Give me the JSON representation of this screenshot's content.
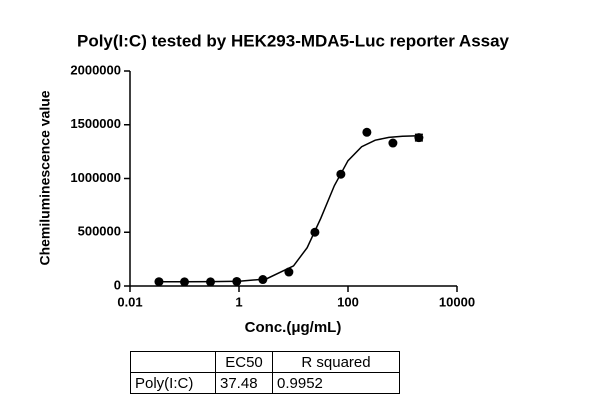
{
  "chart_data": {
    "type": "scatter",
    "title": "Poly(I:C) tested by HEK293-MDA5-Luc reporter Assay",
    "x_label": "Conc.(μg/mL)",
    "y_label": "Chemiluminescence value",
    "log_x": true,
    "color": "#000000",
    "x": [
      0.034,
      0.1,
      0.3,
      0.91,
      2.74,
      8.23,
      24.7,
      74,
      222,
      667,
      2000
    ],
    "values": [
      40000,
      38000,
      38000,
      42000,
      60000,
      130000,
      500000,
      1040000,
      1430000,
      1330000,
      1380000
    ],
    "errors": [
      null,
      null,
      null,
      null,
      null,
      null,
      null,
      null,
      null,
      null,
      30000
    ],
    "fit_curve": {
      "x": [
        0.0316,
        0.1,
        0.316,
        1,
        3.16,
        10,
        17.8,
        31.6,
        56.2,
        100,
        178,
        316,
        562,
        1000,
        2000
      ],
      "values": [
        40000,
        40000,
        40651,
        44100,
        65400,
        186600,
        356300,
        628700,
        933600,
        1165800,
        1295700,
        1356400,
        1382300,
        1392900,
        1397600
      ]
    },
    "xlim": [
      0.01,
      10000
    ],
    "xticks": [
      0.01,
      1,
      100,
      10000
    ],
    "ylim": [
      0,
      2000000
    ],
    "yticks": [
      0,
      500000,
      1000000,
      1500000,
      2000000
    ]
  },
  "table": {
    "header": [
      "",
      "EC50",
      "R squared"
    ],
    "rows": [
      [
        "Poly(I:C)",
        "37.48",
        "0.9952"
      ]
    ]
  }
}
